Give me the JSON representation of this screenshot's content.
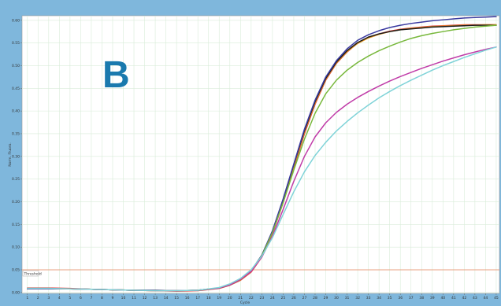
{
  "panel_label": "B",
  "colors": {
    "frame": "#7fb7dc",
    "panel_letter": "#1a7aae",
    "grid": "#d9ecd9",
    "threshold": "#e8a080"
  },
  "chart_data": {
    "type": "line",
    "title": "",
    "xlabel": "Cycle",
    "ylabel": "Norm. Fluoro.",
    "xlim": [
      0.5,
      45.3
    ],
    "ylim": [
      -0.002,
      0.61
    ],
    "x_ticks": [
      "1",
      "2",
      "3",
      "4",
      "5",
      "6",
      "7",
      "8",
      "9",
      "10",
      "11",
      "12",
      "13",
      "14",
      "15",
      "16",
      "17",
      "18",
      "19",
      "20",
      "21",
      "22",
      "23",
      "24",
      "25",
      "26",
      "27",
      "28",
      "29",
      "30",
      "31",
      "32",
      "33",
      "34",
      "35",
      "36",
      "37",
      "38",
      "39",
      "40",
      "41",
      "42",
      "43",
      "44",
      "45"
    ],
    "y_ticks": [
      "0.00",
      "0.05",
      "0.10",
      "0.15",
      "0.20",
      "0.25",
      "0.30",
      "0.35",
      "0.40",
      "0.45",
      "0.50",
      "0.55",
      "0.60"
    ],
    "grid": true,
    "legend": "none",
    "threshold": {
      "label": "Threshold",
      "value": 0.05
    },
    "x": [
      1,
      3,
      5,
      7,
      9,
      11,
      13,
      15,
      17,
      19,
      20,
      21,
      22,
      23,
      24,
      25,
      26,
      27,
      28,
      29,
      30,
      31,
      32,
      33,
      34,
      35,
      36,
      37,
      38,
      39,
      40,
      41,
      42,
      43,
      44,
      45
    ],
    "series": [
      {
        "color": "#e04040",
        "values": [
          0.01,
          0.01,
          0.009,
          0.007,
          0.006,
          0.005,
          0.004,
          0.003,
          0.004,
          0.009,
          0.016,
          0.027,
          0.045,
          0.078,
          0.13,
          0.198,
          0.275,
          0.35,
          0.415,
          0.468,
          0.505,
          0.53,
          0.55,
          0.562,
          0.57,
          0.576,
          0.58,
          0.583,
          0.585,
          0.587,
          0.588,
          0.589,
          0.59,
          0.59,
          0.59,
          0.59
        ]
      },
      {
        "color": "#e8961e",
        "values": [
          0.009,
          0.009,
          0.008,
          0.007,
          0.006,
          0.005,
          0.004,
          0.004,
          0.005,
          0.01,
          0.017,
          0.028,
          0.047,
          0.081,
          0.133,
          0.202,
          0.279,
          0.354,
          0.418,
          0.47,
          0.506,
          0.531,
          0.549,
          0.561,
          0.569,
          0.575,
          0.579,
          0.582,
          0.584,
          0.586,
          0.587,
          0.588,
          0.589,
          0.589,
          0.59,
          0.59
        ]
      },
      {
        "color": "#1a1a1a",
        "values": [
          0.008,
          0.008,
          0.008,
          0.007,
          0.006,
          0.005,
          0.005,
          0.004,
          0.005,
          0.01,
          0.017,
          0.029,
          0.048,
          0.082,
          0.135,
          0.205,
          0.282,
          0.357,
          0.421,
          0.472,
          0.508,
          0.533,
          0.551,
          0.563,
          0.57,
          0.575,
          0.579,
          0.581,
          0.583,
          0.585,
          0.586,
          0.587,
          0.588,
          0.589,
          0.589,
          0.589
        ]
      },
      {
        "color": "#3a3aa0",
        "values": [
          0.008,
          0.008,
          0.008,
          0.007,
          0.006,
          0.005,
          0.005,
          0.004,
          0.005,
          0.01,
          0.017,
          0.029,
          0.048,
          0.082,
          0.136,
          0.206,
          0.283,
          0.36,
          0.424,
          0.475,
          0.511,
          0.537,
          0.556,
          0.568,
          0.577,
          0.584,
          0.589,
          0.593,
          0.596,
          0.599,
          0.601,
          0.603,
          0.605,
          0.606,
          0.607,
          0.608
        ]
      },
      {
        "color": "#78b83c",
        "values": [
          0.009,
          0.009,
          0.008,
          0.007,
          0.006,
          0.005,
          0.004,
          0.004,
          0.005,
          0.01,
          0.017,
          0.029,
          0.048,
          0.081,
          0.132,
          0.198,
          0.27,
          0.338,
          0.395,
          0.438,
          0.468,
          0.49,
          0.507,
          0.521,
          0.533,
          0.543,
          0.552,
          0.56,
          0.566,
          0.571,
          0.575,
          0.579,
          0.582,
          0.585,
          0.587,
          0.589
        ]
      },
      {
        "color": "#c03ca8",
        "values": [
          0.009,
          0.009,
          0.008,
          0.007,
          0.006,
          0.005,
          0.004,
          0.004,
          0.005,
          0.01,
          0.017,
          0.029,
          0.047,
          0.078,
          0.124,
          0.183,
          0.245,
          0.3,
          0.343,
          0.374,
          0.397,
          0.415,
          0.43,
          0.443,
          0.455,
          0.466,
          0.476,
          0.485,
          0.494,
          0.502,
          0.51,
          0.517,
          0.524,
          0.53,
          0.536,
          0.541
        ]
      },
      {
        "color": "#7fd3d8",
        "values": [
          0.009,
          0.009,
          0.008,
          0.007,
          0.006,
          0.005,
          0.004,
          0.004,
          0.005,
          0.011,
          0.019,
          0.031,
          0.05,
          0.08,
          0.121,
          0.172,
          0.222,
          0.266,
          0.302,
          0.331,
          0.356,
          0.377,
          0.396,
          0.413,
          0.429,
          0.443,
          0.456,
          0.468,
          0.479,
          0.49,
          0.5,
          0.509,
          0.518,
          0.526,
          0.534,
          0.541
        ]
      }
    ]
  }
}
